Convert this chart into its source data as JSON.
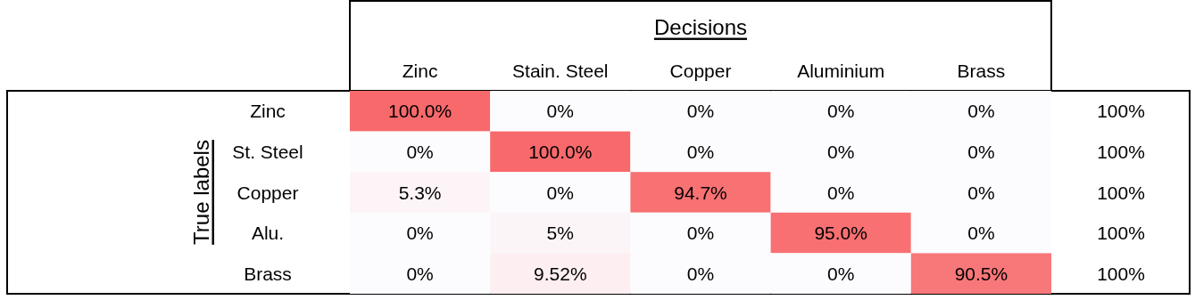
{
  "chart_data": {
    "type": "heatmap",
    "xlabel": "Decisions",
    "ylabel": "True labels",
    "categories": [
      "Zinc",
      "Stain. Steel",
      "Copper",
      "Aluminium",
      "Brass"
    ],
    "y_categories": [
      "Zinc",
      "St. Steel",
      "Copper",
      "Alu.",
      "Brass"
    ],
    "y2_categories": [
      "100%",
      "100%",
      "100%",
      "100%",
      "100%"
    ],
    "cells": [
      [
        100,
        0,
        0,
        0,
        0
      ],
      [
        0,
        100,
        0,
        0,
        0
      ],
      [
        5.3,
        0,
        94.7,
        0,
        0
      ],
      [
        0,
        5,
        0,
        95,
        0
      ],
      [
        0,
        9.52,
        0,
        0,
        90.5
      ]
    ],
    "cell_labels": [
      [
        "100.0%",
        "0%",
        "0%",
        "0%",
        "0%"
      ],
      [
        "0%",
        "100.0%",
        "0%",
        "0%",
        "0%"
      ],
      [
        "5.3%",
        "0%",
        "94.7%",
        "0%",
        "0%"
      ],
      [
        "0%",
        "5%",
        "0%",
        "95.0%",
        "0%"
      ],
      [
        "0%",
        "9.52%",
        "0%",
        "0%",
        "90.5%"
      ]
    ]
  }
}
